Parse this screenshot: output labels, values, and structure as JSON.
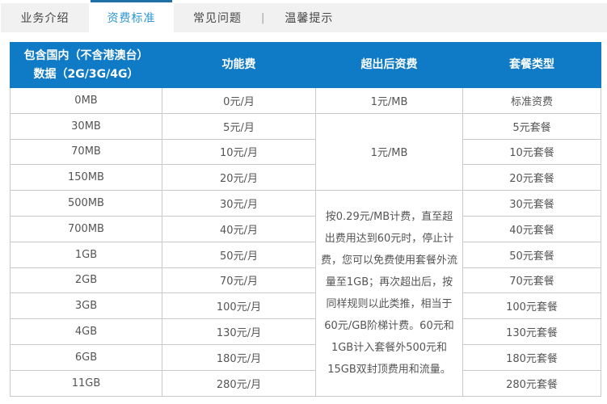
{
  "tabs": {
    "items": [
      {
        "label": "业务介绍",
        "active": false
      },
      {
        "label": "资费标准",
        "active": true
      },
      {
        "label": "常见问题",
        "active": false
      },
      {
        "label": "温馨提示",
        "active": false
      }
    ],
    "separator": "|"
  },
  "table": {
    "headers": [
      "包含国内（不含港澳台）数据（2G/3G/4G）",
      "功能费",
      "超出后资费",
      "套餐类型"
    ],
    "rows": [
      {
        "data": "0MB",
        "fee": "0元/月",
        "overage": {
          "text": "1元/MB",
          "rowspan": 1
        },
        "plan": "标准资费"
      },
      {
        "data": "30MB",
        "fee": "5元/月",
        "overage": {
          "text": "1元/MB",
          "rowspan": 3
        },
        "plan": "5元套餐"
      },
      {
        "data": "70MB",
        "fee": "10元/月",
        "plan": "10元套餐"
      },
      {
        "data": "150MB",
        "fee": "20元/月",
        "plan": "20元套餐"
      },
      {
        "data": "500MB",
        "fee": "30元/月",
        "overage": {
          "text": "按0.29元/MB计费，直至超出费用达到60元时，停止计费，您可以免费使用套餐外流量至1GB；再次超出后，按同样规则以此类推，相当于60元/GB阶梯计费。60元和1GB计入套餐外500元和15GB双封顶费用和流量。",
          "rowspan": 8
        },
        "plan": "30元套餐"
      },
      {
        "data": "700MB",
        "fee": "40元/月",
        "plan": "40元套餐"
      },
      {
        "data": "1GB",
        "fee": "50元/月",
        "plan": "50元套餐"
      },
      {
        "data": "2GB",
        "fee": "70元/月",
        "plan": "70元套餐"
      },
      {
        "data": "3GB",
        "fee": "100元/月",
        "plan": "100元套餐"
      },
      {
        "data": "4GB",
        "fee": "130元/月",
        "plan": "130元套餐"
      },
      {
        "data": "6GB",
        "fee": "180元/月",
        "plan": "180元套餐"
      },
      {
        "data": "11GB",
        "fee": "280元/月",
        "plan": "280元套餐"
      }
    ]
  },
  "colors": {
    "header_bg": "#0f7ac5",
    "active_tab_text": "#2b97d2",
    "active_tab_border": "#1d6fa5",
    "inactive_tab_bg": "#f1f1f1",
    "table_outer_border": "#aac4d5",
    "cell_border": "#c9c9c9",
    "cell_text": "#555555"
  }
}
